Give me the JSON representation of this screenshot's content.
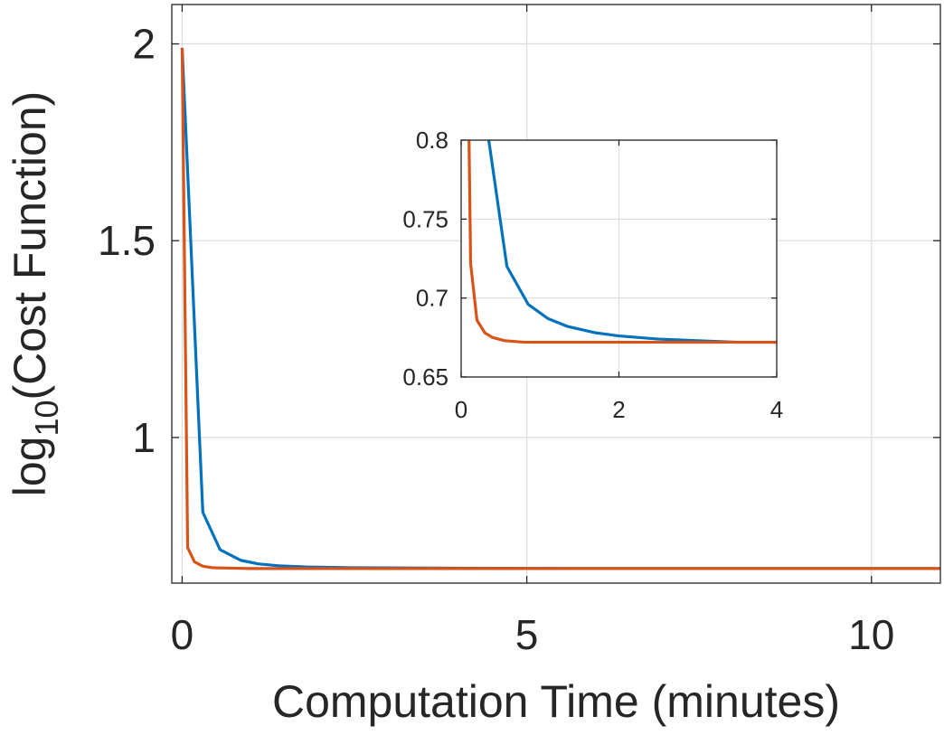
{
  "chart_data": [
    {
      "id": "main",
      "type": "line",
      "xlabel": "Computation Time (minutes)",
      "ylabel_main": "log",
      "ylabel_sub": "10",
      "ylabel_rest": "(Cost Function)",
      "xlim": [
        -0.15,
        11.0
      ],
      "ylim": [
        0.63,
        2.1
      ],
      "xticks": [
        0,
        5,
        10
      ],
      "xtick_labels": [
        "0",
        "5",
        "10"
      ],
      "yticks": [
        1,
        1.5,
        2
      ],
      "ytick_labels": [
        "1",
        "1.5",
        "2"
      ],
      "grid": true,
      "series": [
        {
          "color": "#0072BD",
          "x": [
            0,
            0.3,
            0.55,
            0.85,
            1.1,
            1.4,
            1.8,
            2.5,
            4,
            6,
            8,
            11.0
          ],
          "y": [
            1.99,
            0.81,
            0.715,
            0.688,
            0.679,
            0.674,
            0.671,
            0.669,
            0.668,
            0.667,
            0.667,
            0.667
          ]
        },
        {
          "color": "#D95319",
          "x": [
            0,
            0.08,
            0.18,
            0.3,
            0.45,
            0.7,
            1.0,
            2,
            4,
            11.0
          ],
          "y": [
            1.99,
            0.72,
            0.684,
            0.673,
            0.669,
            0.668,
            0.667,
            0.667,
            0.667,
            0.667
          ]
        }
      ]
    },
    {
      "id": "inset",
      "type": "line",
      "xlim": [
        0,
        4
      ],
      "ylim": [
        0.65,
        0.8
      ],
      "xticks": [
        0,
        2,
        4
      ],
      "xtick_labels": [
        "0",
        "2",
        "4"
      ],
      "yticks": [
        0.65,
        0.7,
        0.75,
        0.8
      ],
      "ytick_labels": [
        "0.65",
        "0.7",
        "0.75",
        "0.8"
      ],
      "grid": true,
      "series": [
        {
          "color": "#0072BD",
          "x": [
            0.35,
            0.58,
            0.85,
            1.1,
            1.35,
            1.7,
            2.0,
            2.5,
            3.0,
            3.5,
            4.0
          ],
          "y": [
            0.8,
            0.72,
            0.696,
            0.687,
            0.682,
            0.678,
            0.676,
            0.674,
            0.673,
            0.672,
            0.672
          ]
        },
        {
          "color": "#D95319",
          "x": [
            0.1,
            0.12,
            0.2,
            0.3,
            0.4,
            0.55,
            0.8,
            1.2,
            2.0,
            3.0,
            4.0
          ],
          "y": [
            0.8,
            0.722,
            0.686,
            0.678,
            0.675,
            0.673,
            0.672,
            0.672,
            0.672,
            0.672,
            0.672
          ]
        }
      ]
    }
  ]
}
